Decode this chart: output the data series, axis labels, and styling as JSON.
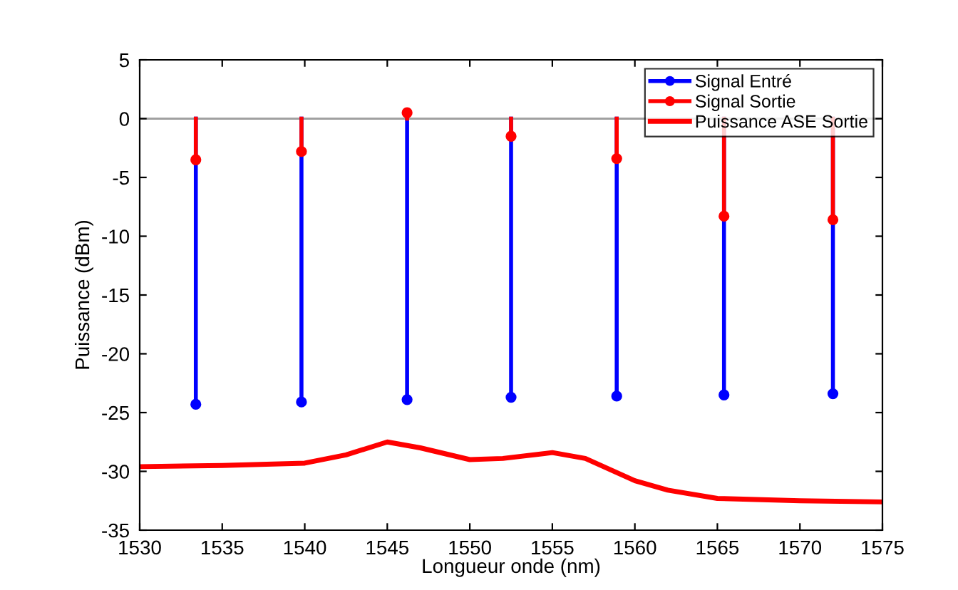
{
  "chart_data": {
    "type": "lollipop",
    "xlabel": "Longueur onde (nm)",
    "ylabel": "Puissance (dBm)",
    "xlim": [
      1530,
      1575
    ],
    "ylim": [
      -35,
      5
    ],
    "xticks": [
      1530,
      1535,
      1540,
      1545,
      1550,
      1555,
      1560,
      1565,
      1570,
      1575
    ],
    "yticks": [
      -35,
      -30,
      -25,
      -20,
      -15,
      -10,
      -5,
      0,
      5
    ],
    "grid": false,
    "legend": "top right",
    "marker": "circle",
    "ref_lines": [
      {
        "axis": "y",
        "value": 0,
        "color": "#a0a0a0"
      }
    ],
    "series": [
      {
        "name": "Signal Entré",
        "color": "#0000ff",
        "x": [
          1533.4,
          1539.8,
          1546.2,
          1552.5,
          1558.9,
          1565.4,
          1572.0
        ],
        "values": [
          -24.3,
          -24.1,
          -23.9,
          -23.7,
          -23.6,
          -23.5,
          -23.4
        ]
      },
      {
        "name": "Signal Sortie",
        "color": "#ff0000",
        "x": [
          1533.4,
          1539.8,
          1546.2,
          1552.5,
          1558.9,
          1565.4,
          1572.0
        ],
        "values": [
          -3.5,
          -2.8,
          0.5,
          -1.5,
          -3.4,
          -8.3,
          -8.6
        ]
      },
      {
        "name": "Puissance ASE Sortie",
        "type": "line",
        "marker": "none",
        "color": "#ff0000",
        "x": [
          1530,
          1535,
          1540,
          1542.5,
          1545,
          1547,
          1550,
          1552,
          1555,
          1557,
          1560,
          1562,
          1565,
          1570,
          1575
        ],
        "values": [
          -29.6,
          -29.5,
          -29.3,
          -28.6,
          -27.5,
          -28.0,
          -29.0,
          -28.9,
          -28.4,
          -28.9,
          -30.8,
          -31.6,
          -32.3,
          -32.5,
          -32.6
        ]
      }
    ]
  }
}
